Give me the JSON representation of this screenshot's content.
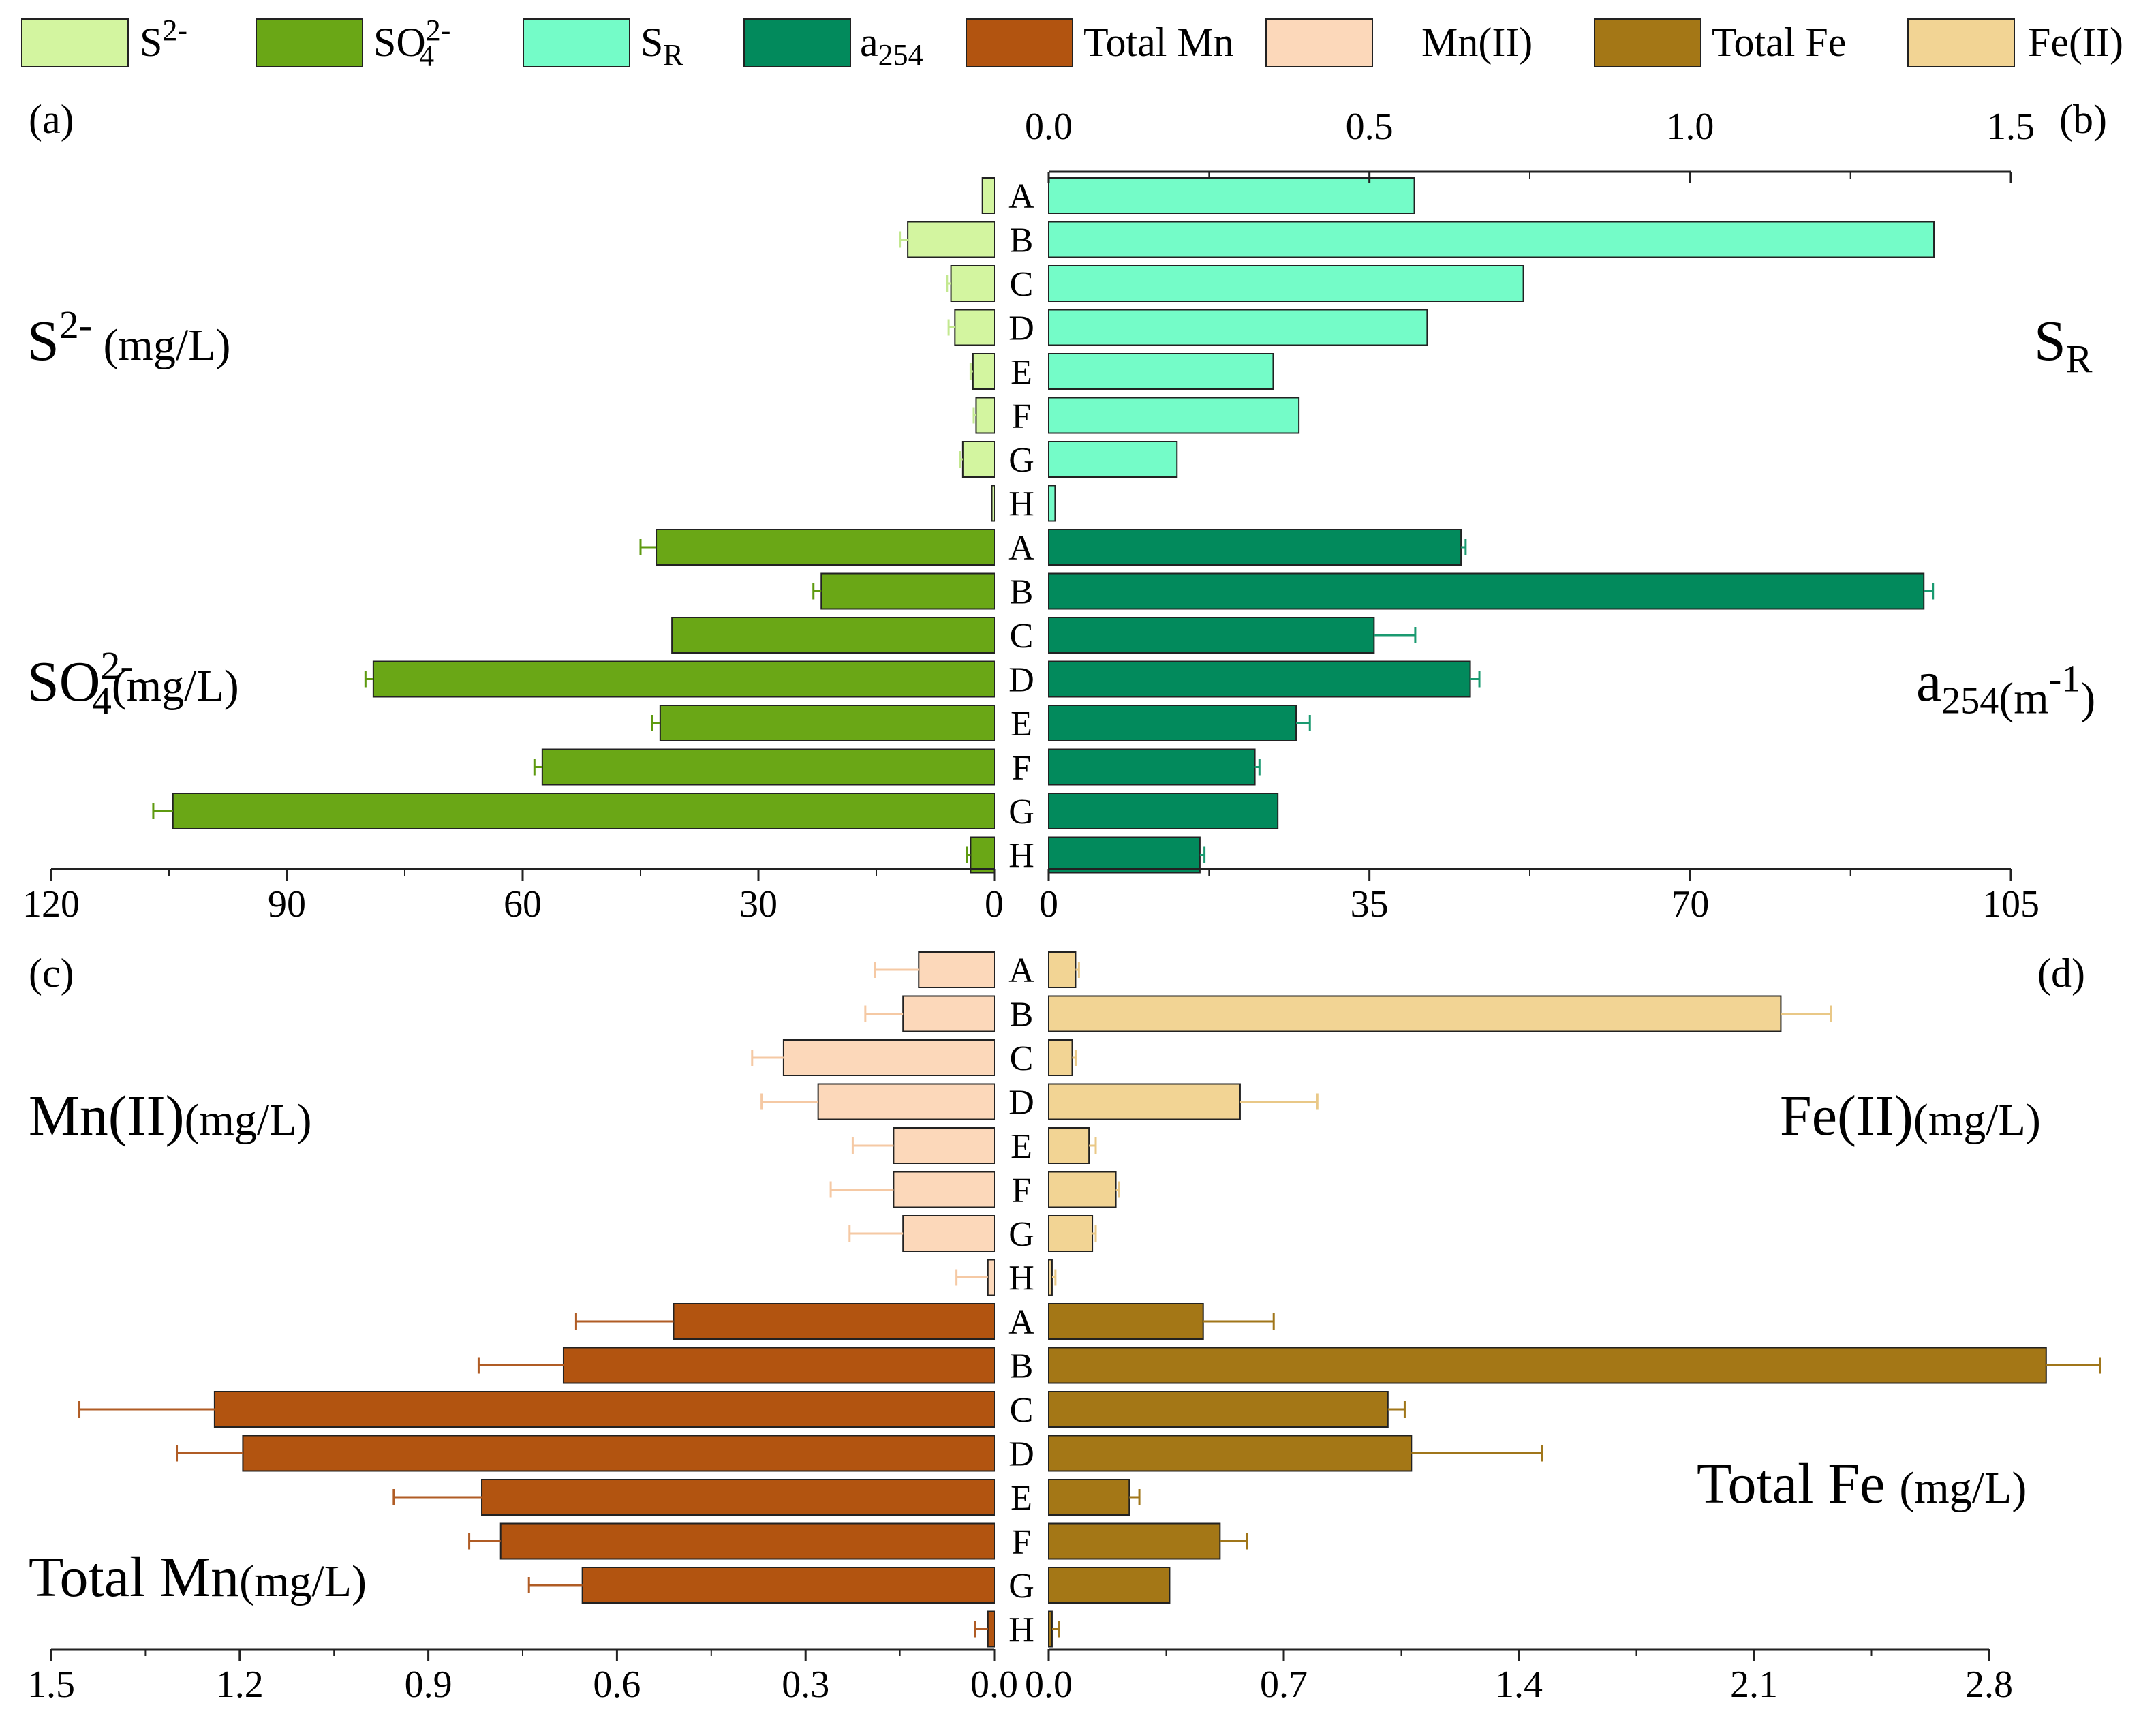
{
  "colors": {
    "s2": "#d3f5a0",
    "so4": "#6aa716",
    "sr": "#74fcc8",
    "a254": "#028a5c",
    "total_mn": "#b25410",
    "mn2": "#fcd8ba",
    "total_fe": "#a47716",
    "fe2": "#f2d494",
    "err_s2": "#c3e890",
    "err_so4": "#5e9a10",
    "err_sr": "#4dd8a8",
    "err_a254": "#1a9a70",
    "err_total_mn": "#b05c25",
    "err_mn2": "#f5c9a4",
    "err_total_fe": "#a0761a",
    "err_fe2": "#e9c887"
  },
  "legend": [
    {
      "key": "s2",
      "base": "S",
      "sup": "2-",
      "sub": ""
    },
    {
      "key": "so4",
      "base": "SO",
      "sup": "2-",
      "sub": "4"
    },
    {
      "key": "sr",
      "base": "S",
      "sup": "",
      "sub": "R"
    },
    {
      "key": "a254",
      "base": "a",
      "sup": "",
      "sub": "254"
    },
    {
      "key": "total_mn",
      "base": "Total Mn",
      "sup": "",
      "sub": ""
    },
    {
      "key": "mn2",
      "base": "Mn(II)",
      "sup": "",
      "sub": ""
    },
    {
      "key": "total_fe",
      "base": "Total Fe",
      "sup": "",
      "sub": ""
    },
    {
      "key": "fe2",
      "base": "Fe(II)",
      "sup": "",
      "sub": ""
    }
  ],
  "panel_labels": {
    "a": "(a)",
    "b": "(b)",
    "c": "(c)",
    "d": "(d)"
  },
  "side_labels": {
    "s2": {
      "base": "S",
      "sup": "2-",
      "unit": " (mg/L)"
    },
    "so4": {
      "base": "SO",
      "sup": "2-",
      "sub": "4",
      "unit": "(mg/L)"
    },
    "sr": {
      "base": "S",
      "sub": "R"
    },
    "a254": {
      "base": "a",
      "sub": "254",
      "unit": "(m",
      "unit_sup": "-1",
      "unit_end": ")"
    },
    "mn2": {
      "base": "Mn(II)",
      "unit": "(mg/L)"
    },
    "fe2": {
      "base": "Fe(II)",
      "unit": "(mg/L)"
    },
    "total_fe": {
      "base": "Total Fe",
      "unit": "(mg/L)"
    },
    "total_mn": {
      "base": "Total Mn",
      "unit": "(mg/L)"
    }
  },
  "chart_data": [
    {
      "id": "a",
      "type": "bar",
      "orientation": "horizontal",
      "direction": "left",
      "categories": [
        "A",
        "B",
        "C",
        "D",
        "E",
        "F",
        "G",
        "H"
      ],
      "series": [
        {
          "name": "S2-",
          "key": "s2",
          "values": [
            1.5,
            11,
            5.5,
            5,
            2.7,
            2.3,
            4,
            0.3
          ],
          "errors": [
            0,
            1,
            0.5,
            0.8,
            0.3,
            0.3,
            0.3,
            0
          ]
        },
        {
          "name": "SO4 2-",
          "key": "so4",
          "values": [
            43,
            22,
            41,
            79,
            42.5,
            57.5,
            104.5,
            3
          ],
          "errors": [
            2,
            1,
            0,
            1,
            1,
            1,
            2.5,
            0.5
          ]
        }
      ],
      "xlim": [
        0,
        120
      ],
      "xticks": [
        120,
        90,
        60,
        30,
        0
      ],
      "xticklabels": [
        "120",
        "90",
        "60",
        "30",
        "0"
      ]
    },
    {
      "id": "b",
      "type": "bar",
      "orientation": "horizontal",
      "direction": "right",
      "categories": [
        "A",
        "B",
        "C",
        "D",
        "E",
        "F",
        "G",
        "H"
      ],
      "series": [
        {
          "name": "SR",
          "key": "sr",
          "axis": "top",
          "values": [
            0.57,
            1.38,
            0.74,
            0.59,
            0.35,
            0.39,
            0.2,
            0.01
          ],
          "errors": [
            0,
            0,
            0,
            0,
            0,
            0,
            0,
            0
          ]
        },
        {
          "name": "a254",
          "key": "a254",
          "axis": "bottom",
          "values": [
            45,
            95.5,
            35.5,
            46,
            27,
            22.5,
            25,
            16.5
          ],
          "errors": [
            0.5,
            1,
            4.5,
            1,
            1.5,
            0.5,
            0,
            0.5
          ]
        }
      ],
      "top_xlim": [
        0,
        1.5
      ],
      "top_xticks": [
        0.0,
        0.5,
        1.0,
        1.5
      ],
      "top_xticklabels": [
        "0.0",
        "0.5",
        "1.0",
        "1.5"
      ],
      "xlim": [
        0,
        105
      ],
      "xticks": [
        0,
        35,
        70,
        105
      ],
      "xticklabels": [
        "0",
        "35",
        "70",
        "105"
      ]
    },
    {
      "id": "c",
      "type": "bar",
      "orientation": "horizontal",
      "direction": "left",
      "categories": [
        "A",
        "B",
        "C",
        "D",
        "E",
        "F",
        "G",
        "H"
      ],
      "series": [
        {
          "name": "Mn(II)",
          "key": "mn2",
          "values": [
            0.12,
            0.145,
            0.335,
            0.28,
            0.16,
            0.16,
            0.145,
            0.01
          ],
          "errors": [
            0.07,
            0.06,
            0.05,
            0.09,
            0.065,
            0.1,
            0.085,
            0.05
          ]
        },
        {
          "name": "Total Mn",
          "key": "total_mn",
          "values": [
            0.51,
            0.685,
            1.24,
            1.195,
            0.815,
            0.785,
            0.655,
            0.01
          ],
          "errors": [
            0.155,
            0.135,
            0.215,
            0.105,
            0.14,
            0.05,
            0.085,
            0.02
          ]
        }
      ],
      "xlim": [
        0,
        1.5
      ],
      "xticks": [
        1.5,
        1.2,
        0.9,
        0.6,
        0.3,
        0.0
      ],
      "xticklabels": [
        "1.5",
        "1.2",
        "0.9",
        "0.6",
        "0.3",
        "0.0"
      ]
    },
    {
      "id": "d",
      "type": "bar",
      "orientation": "horizontal",
      "direction": "right",
      "categories": [
        "A",
        "B",
        "C",
        "D",
        "E",
        "F",
        "G",
        "H"
      ],
      "series": [
        {
          "name": "Fe(II)",
          "key": "fe2",
          "values": [
            0.08,
            2.18,
            0.07,
            0.57,
            0.12,
            0.2,
            0.13,
            0.01
          ],
          "errors": [
            0.01,
            0.15,
            0.01,
            0.23,
            0.02,
            0.01,
            0.01,
            0.01
          ]
        },
        {
          "name": "Total Fe",
          "key": "total_fe",
          "values": [
            0.46,
            2.97,
            1.01,
            1.08,
            0.24,
            0.51,
            0.36,
            0.01
          ],
          "errors": [
            0.21,
            0.16,
            0.05,
            0.39,
            0.03,
            0.08,
            0,
            0.02
          ]
        }
      ],
      "xlim": [
        0,
        2.8
      ],
      "xticks": [
        0.0,
        0.7,
        1.4,
        2.1,
        2.8
      ],
      "xticklabels": [
        "0.0",
        "0.7",
        "1.4",
        "2.1",
        "2.8"
      ]
    }
  ]
}
